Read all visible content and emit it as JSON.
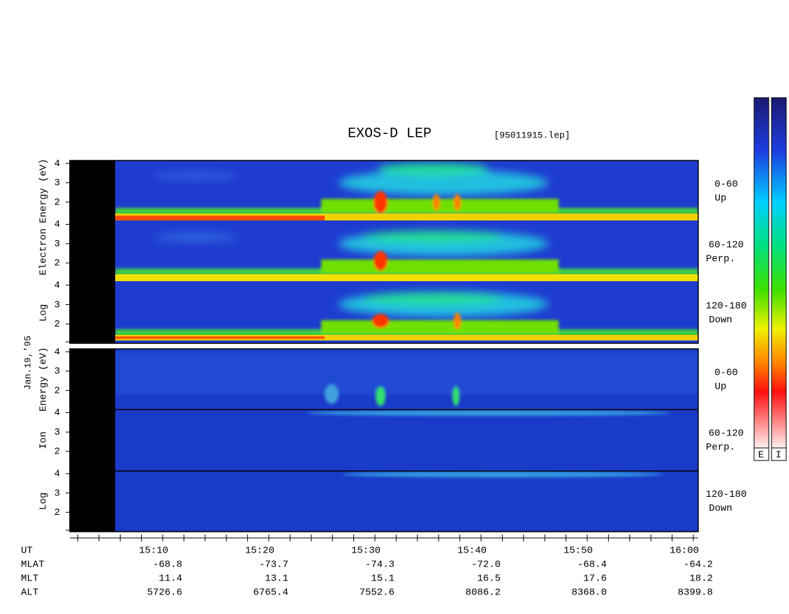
{
  "title": "EXOS-D LEP",
  "file": "[95011915.lep]",
  "date": "Jan.19,'95",
  "electron_panel": {
    "ylabel_words": [
      "Log",
      "Electron",
      "Energy (eV)"
    ],
    "ylim": [
      1,
      4.15
    ],
    "yticks": [
      2,
      3,
      4
    ],
    "channels": [
      {
        "angle": "0-60",
        "dir": "Up"
      },
      {
        "angle": "60-120",
        "dir": "Perp."
      },
      {
        "angle": "120-180",
        "dir": "Down"
      }
    ]
  },
  "ion_panel": {
    "ylabel_words": [
      "Log",
      "Ion",
      "Energy (eV)"
    ],
    "ylim": [
      1,
      4.15
    ],
    "yticks": [
      2,
      3,
      4
    ],
    "channels": [
      {
        "angle": "0-60",
        "dir": "Up"
      },
      {
        "angle": "60-120",
        "dir": "Perp."
      },
      {
        "angle": "120-180",
        "dir": "Down"
      }
    ]
  },
  "time_labels": [
    "15:10",
    "15:20",
    "15:30",
    "15:40",
    "15:50",
    "16:00"
  ],
  "orbit_rows": [
    {
      "name": "UT",
      "values": null
    },
    {
      "name": "MLAT",
      "values": [
        "-68.8",
        "-73.7",
        "-74.3",
        "-72.0",
        "-68.4",
        "-64.2"
      ]
    },
    {
      "name": "MLT",
      "values": [
        "11.4",
        "13.1",
        "15.1",
        "16.5",
        "17.6",
        "18.2"
      ]
    },
    {
      "name": "ALT",
      "values": [
        "5726.6",
        "6765.4",
        "7552.6",
        "8086.2",
        "8368.0",
        "8399.8"
      ]
    }
  ],
  "colorbars": [
    "E",
    "I"
  ]
}
